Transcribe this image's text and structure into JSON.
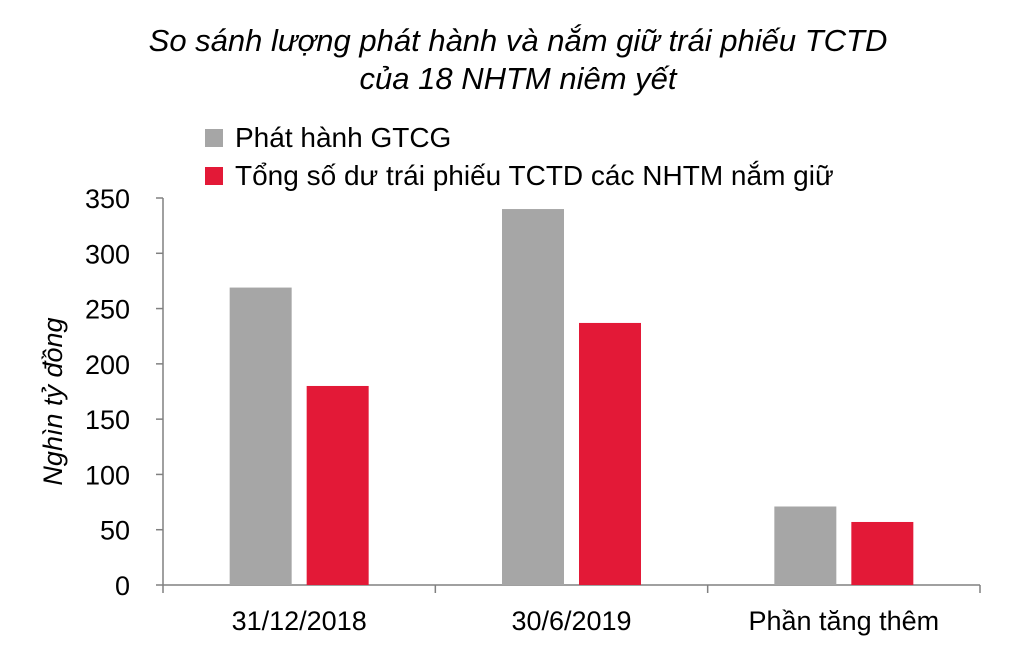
{
  "chart_data": {
    "type": "bar",
    "title_line1": "So sánh lượng phát hành và nắm giữ trái phiếu TCTD",
    "title_line2": "của 18 NHTM niêm yết",
    "ylabel": "Nghìn tỷ đồng",
    "xlabel": "",
    "categories": [
      "31/12/2018",
      "30/6/2019",
      "Phần tăng thêm"
    ],
    "series": [
      {
        "name": "Phát hành GTCG",
        "color": "#a6a6a6",
        "values": [
          269,
          340,
          71
        ]
      },
      {
        "name": "Tổng số dư trái phiếu TCTD các NHTM nắm giữ",
        "color": "#e31937",
        "values": [
          180,
          237,
          57
        ]
      }
    ],
    "ylim": [
      0,
      350
    ],
    "yticks": [
      "0",
      "50",
      "100",
      "150",
      "200",
      "250",
      "300",
      "350"
    ],
    "grid": false,
    "legend_position": "top"
  }
}
